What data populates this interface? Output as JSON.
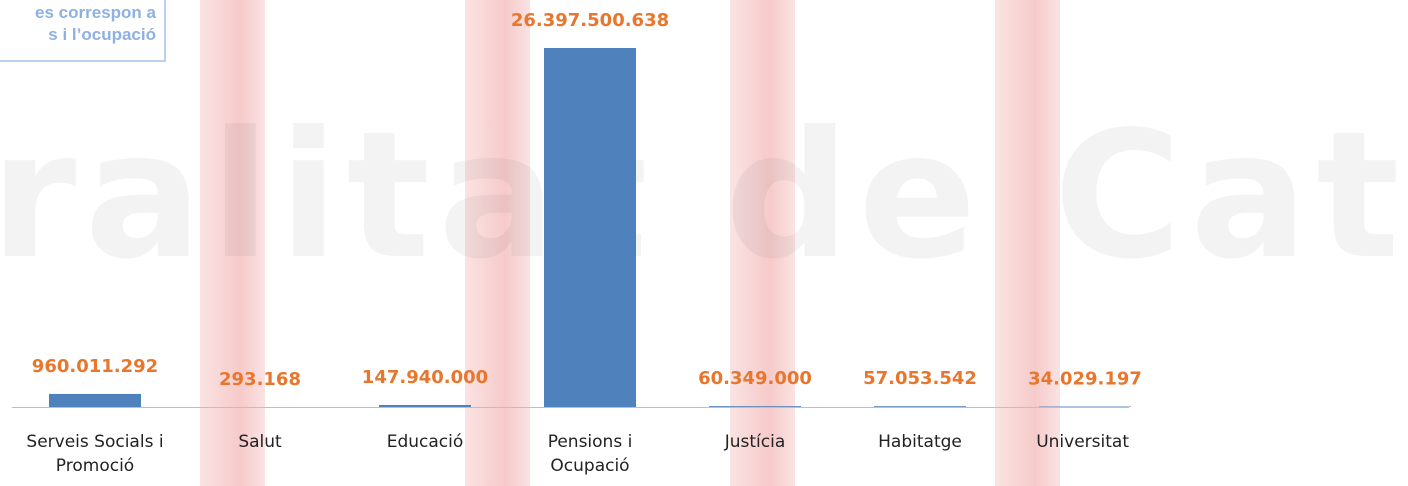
{
  "chart_data": {
    "type": "bar",
    "annotation": [
      "es correspon a",
      "s i l’ocupació"
    ],
    "watermark": "ralitat de Cat",
    "categories": [
      "Serveis Socials i Promoció",
      "Salut",
      "Educació",
      "Pensions i Ocupació",
      "Justícia",
      "Habitatge",
      "Universitat"
    ],
    "values": [
      960011292,
      293168,
      147940000,
      26397500638,
      60349000,
      57053542,
      34029197
    ],
    "value_labels": [
      "960.011.292",
      "293.168",
      "147.940.000",
      "26.397.500.638",
      "60.349.000",
      "57.053.542",
      "34.029.197"
    ],
    "color": "#4f81bd",
    "label_color": "#e8762c"
  }
}
